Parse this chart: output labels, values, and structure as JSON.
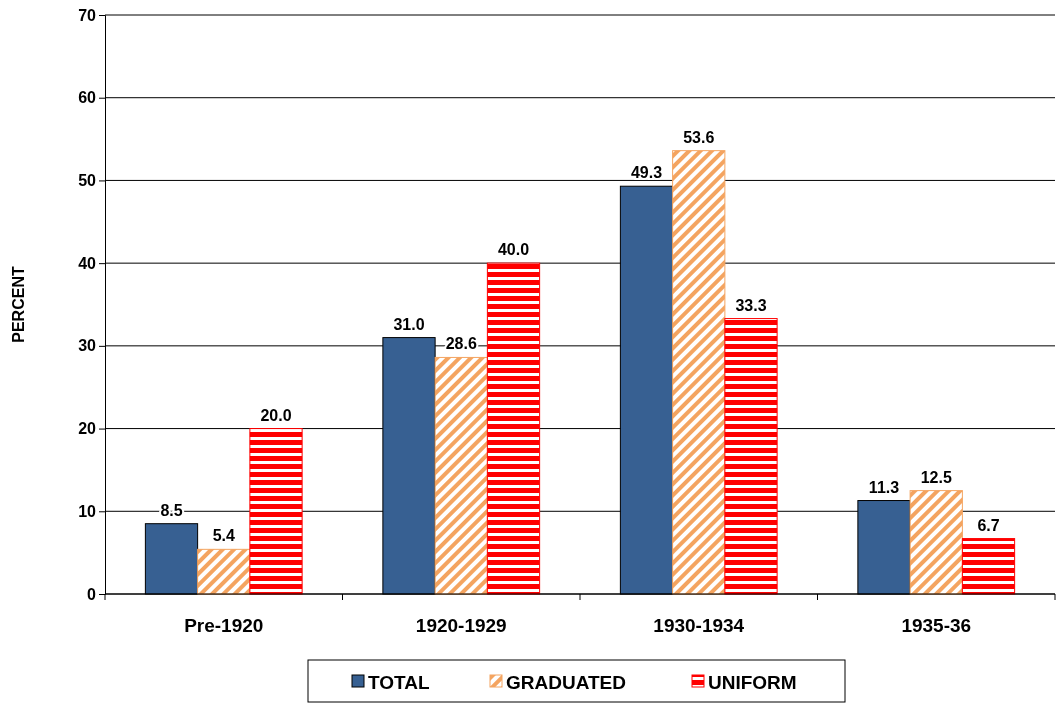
{
  "chart_data": {
    "type": "bar",
    "ylabel": "PERCENT",
    "categories": [
      "Pre-1920",
      "1920-1929",
      "1930-1934",
      "1935-36"
    ],
    "series": [
      {
        "name": "TOTAL",
        "color": "#376092",
        "values": [
          8.5,
          31.0,
          49.3,
          11.3
        ],
        "value_labels": [
          "8.5",
          "31.0",
          "49.3",
          "11.3"
        ]
      },
      {
        "name": "GRADUATED",
        "color": "#f4a460",
        "values": [
          5.4,
          28.6,
          53.6,
          12.5
        ],
        "value_labels": [
          "5.4",
          "28.6",
          "53.6",
          "12.5"
        ]
      },
      {
        "name": "UNIFORM",
        "color": "#ff0000",
        "values": [
          20.0,
          40.0,
          33.3,
          6.7
        ],
        "value_labels": [
          "20.0",
          "40.0",
          "33.3",
          "6.7"
        ]
      }
    ],
    "ylim": [
      0,
      70
    ],
    "yticks": [
      0,
      10,
      20,
      30,
      40,
      50,
      60,
      70
    ],
    "grid": "y",
    "legend": "bottom"
  }
}
